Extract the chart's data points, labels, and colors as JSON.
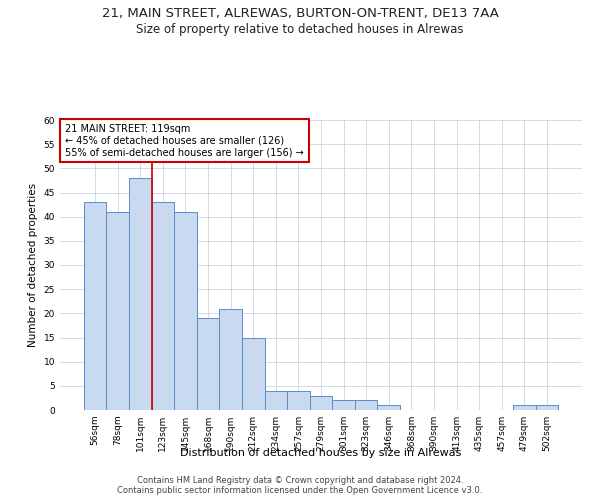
{
  "title1": "21, MAIN STREET, ALREWAS, BURTON-ON-TRENT, DE13 7AA",
  "title2": "Size of property relative to detached houses in Alrewas",
  "xlabel": "Distribution of detached houses by size in Alrewas",
  "ylabel": "Number of detached properties",
  "bar_labels": [
    "56sqm",
    "78sqm",
    "101sqm",
    "123sqm",
    "145sqm",
    "168sqm",
    "190sqm",
    "212sqm",
    "234sqm",
    "257sqm",
    "279sqm",
    "301sqm",
    "323sqm",
    "346sqm",
    "368sqm",
    "390sqm",
    "413sqm",
    "435sqm",
    "457sqm",
    "479sqm",
    "502sqm"
  ],
  "bar_heights": [
    43,
    41,
    48,
    43,
    41,
    19,
    21,
    15,
    4,
    4,
    3,
    2,
    2,
    1,
    0,
    0,
    0,
    0,
    0,
    1,
    1
  ],
  "bar_color": "#c9d9f0",
  "bar_edge_color": "#5b8dc8",
  "vline_color": "#cc0000",
  "vline_index": 2.5,
  "annotation_text": "21 MAIN STREET: 119sqm\n← 45% of detached houses are smaller (126)\n55% of semi-detached houses are larger (156) →",
  "annotation_box_color": "#ffffff",
  "annotation_box_edge_color": "#cc0000",
  "ylim": [
    0,
    60
  ],
  "yticks": [
    0,
    5,
    10,
    15,
    20,
    25,
    30,
    35,
    40,
    45,
    50,
    55,
    60
  ],
  "footer1": "Contains HM Land Registry data © Crown copyright and database right 2024.",
  "footer2": "Contains public sector information licensed under the Open Government Licence v3.0.",
  "bg_color": "#ffffff",
  "grid_color": "#c8d4e8",
  "title1_fontsize": 9.5,
  "title2_fontsize": 8.5,
  "xlabel_fontsize": 8,
  "ylabel_fontsize": 7.5,
  "tick_fontsize": 6.5,
  "annotation_fontsize": 7,
  "footer_fontsize": 6
}
